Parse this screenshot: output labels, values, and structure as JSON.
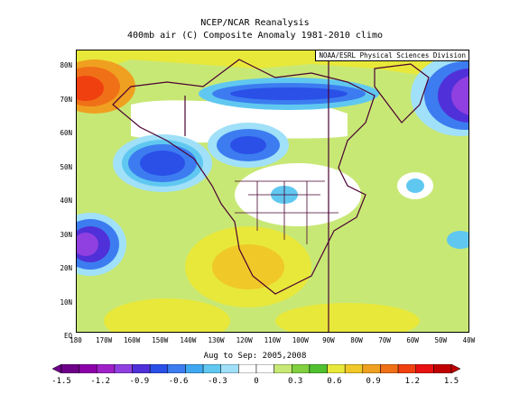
{
  "title_line1": "NCEP/NCAR Reanalysis",
  "title_line2": "400mb air (C) Composite Anomaly 1981-2010 climo",
  "credit": "NOAA/ESRL Physical Sciences Division",
  "date_range": "Aug to Sep: 2005,2008",
  "lat_labels": [
    "80N",
    "70N",
    "60N",
    "50N",
    "40N",
    "30N",
    "20N",
    "10N",
    "EQ"
  ],
  "lon_labels": [
    "180",
    "170W",
    "160W",
    "150W",
    "140W",
    "130W",
    "120W",
    "110W",
    "100W",
    "90W",
    "80W",
    "70W",
    "60W",
    "50W",
    "40W"
  ],
  "colorbar": {
    "labels": [
      "-1.5",
      "-1.2",
      "-0.9",
      "-0.6",
      "-0.3",
      "0",
      "0.3",
      "0.6",
      "0.9",
      "1.2",
      "1.5"
    ],
    "colors": [
      "#6c0089",
      "#8c00a8",
      "#a020c8",
      "#9040e0",
      "#5030d8",
      "#2a50e8",
      "#3c7cf0",
      "#40a8f0",
      "#60c8f0",
      "#a0e0f8",
      "#ffffff",
      "#ffffff",
      "#c8e876",
      "#80d040",
      "#50c030",
      "#e8e83a",
      "#f0c828",
      "#f0a020",
      "#f07018",
      "#f04010",
      "#e81010",
      "#c00000"
    ]
  }
}
